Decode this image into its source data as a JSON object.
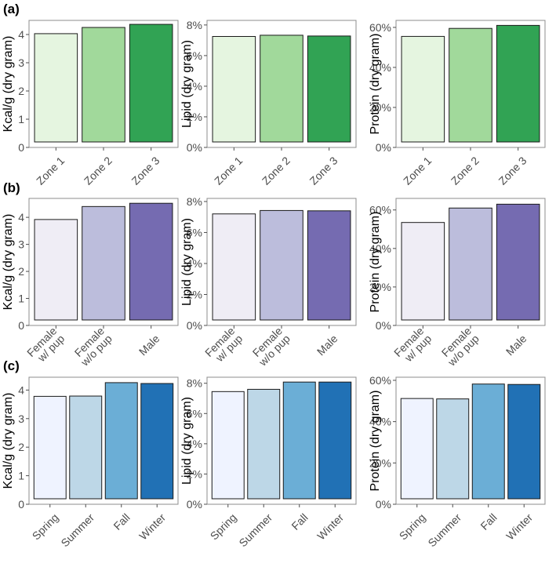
{
  "chart_data": [
    {
      "panel": "(a)",
      "subplots": [
        {
          "type": "bar",
          "ylabel": "Kcal/g (dry gram)",
          "categories": [
            "Zone 1",
            "Zone 2",
            "Zone 3"
          ],
          "values": [
            4.03,
            4.25,
            4.36
          ],
          "colors": [
            "#e5f5e0",
            "#a1d99b",
            "#31a354"
          ],
          "ylim": [
            0,
            4.5
          ],
          "yticks": [
            0,
            1,
            2,
            3,
            4
          ],
          "ytick_labels": [
            "0",
            "1",
            "2",
            "3",
            "4"
          ]
        },
        {
          "type": "bar",
          "ylabel": "Lipid (dry gram)",
          "categories": [
            "Zone 1",
            "Zone 2",
            "Zone 3"
          ],
          "values": [
            0.0725,
            0.0733,
            0.0728
          ],
          "colors": [
            "#e5f5e0",
            "#a1d99b",
            "#31a354"
          ],
          "ylim": [
            0,
            0.083
          ],
          "yticks": [
            0,
            0.02,
            0.04,
            0.06,
            0.08
          ],
          "ytick_labels": [
            "0%",
            "2%",
            "4%",
            "6%",
            "8%"
          ]
        },
        {
          "type": "bar",
          "ylabel": "Protein (dry gram)",
          "categories": [
            "Zone 1",
            "Zone 2",
            "Zone 3"
          ],
          "values": [
            0.555,
            0.595,
            0.61
          ],
          "colors": [
            "#e5f5e0",
            "#a1d99b",
            "#31a354"
          ],
          "ylim": [
            0,
            0.635
          ],
          "yticks": [
            0,
            0.2,
            0.4,
            0.6
          ],
          "ytick_labels": [
            "0%",
            "20%",
            "40%",
            "60%"
          ]
        }
      ]
    },
    {
      "panel": "(b)",
      "subplots": [
        {
          "type": "bar",
          "ylabel": "Kcal/g (dry gram)",
          "categories": [
            "Female\nw/ pup",
            "Female\nw/o pup",
            "Male"
          ],
          "values": [
            3.92,
            4.4,
            4.52
          ],
          "colors": [
            "#efedf5",
            "#bcbddc",
            "#756bb1"
          ],
          "ylim": [
            0,
            4.7
          ],
          "yticks": [
            0,
            1,
            2,
            3,
            4
          ],
          "ytick_labels": [
            "0",
            "1",
            "2",
            "3",
            "4"
          ]
        },
        {
          "type": "bar",
          "ylabel": "Lipid (dry gram)",
          "categories": [
            "Female\nw/ pup",
            "Female\nw/o pup",
            "Male"
          ],
          "values": [
            0.072,
            0.0742,
            0.074
          ],
          "colors": [
            "#efedf5",
            "#bcbddc",
            "#756bb1"
          ],
          "ylim": [
            0,
            0.082
          ],
          "yticks": [
            0,
            0.02,
            0.04,
            0.06,
            0.08
          ],
          "ytick_labels": [
            "0%",
            "2%",
            "4%",
            "6%",
            "8%"
          ]
        },
        {
          "type": "bar",
          "ylabel": "Protein (dry gram)",
          "categories": [
            "Female\nw/ pup",
            "Female\nw/o pup",
            "Male"
          ],
          "values": [
            0.535,
            0.61,
            0.63
          ],
          "colors": [
            "#efedf5",
            "#bcbddc",
            "#756bb1"
          ],
          "ylim": [
            0,
            0.66
          ],
          "yticks": [
            0,
            0.2,
            0.4,
            0.6
          ],
          "ytick_labels": [
            "0%",
            "20%",
            "40%",
            "60%"
          ]
        }
      ]
    },
    {
      "panel": "(c)",
      "subplots": [
        {
          "type": "bar",
          "ylabel": "Kcal/g (dry gram)",
          "categories": [
            "Spring",
            "Summer",
            "Fall",
            "Winter"
          ],
          "values": [
            3.78,
            3.79,
            4.26,
            4.23
          ],
          "colors": [
            "#eff3ff",
            "#bdd7e7",
            "#6baed6",
            "#2171b5"
          ],
          "ylim": [
            0,
            4.45
          ],
          "yticks": [
            0,
            1,
            2,
            3,
            4
          ],
          "ytick_labels": [
            "0",
            "1",
            "2",
            "3",
            "4"
          ]
        },
        {
          "type": "bar",
          "ylabel": "Lipid (dry gram)",
          "categories": [
            "Spring",
            "Summer",
            "Fall",
            "Winter"
          ],
          "values": [
            0.0745,
            0.076,
            0.0808,
            0.0808
          ],
          "colors": [
            "#eff3ff",
            "#bdd7e7",
            "#6baed6",
            "#2171b5"
          ],
          "ylim": [
            0,
            0.084
          ],
          "yticks": [
            0,
            0.02,
            0.04,
            0.06,
            0.08
          ],
          "ytick_labels": [
            "0%",
            "2%",
            "4%",
            "6%",
            "8%"
          ]
        },
        {
          "type": "bar",
          "ylabel": "Protein (dry gram)",
          "categories": [
            "Spring",
            "Summer",
            "Fall",
            "Winter"
          ],
          "values": [
            0.512,
            0.51,
            0.582,
            0.58
          ],
          "colors": [
            "#eff3ff",
            "#bdd7e7",
            "#6baed6",
            "#2171b5"
          ],
          "ylim": [
            0,
            0.615
          ],
          "yticks": [
            0,
            0.2,
            0.4,
            0.6
          ],
          "ytick_labels": [
            "0%",
            "20%",
            "40%",
            "60%"
          ]
        }
      ]
    }
  ]
}
